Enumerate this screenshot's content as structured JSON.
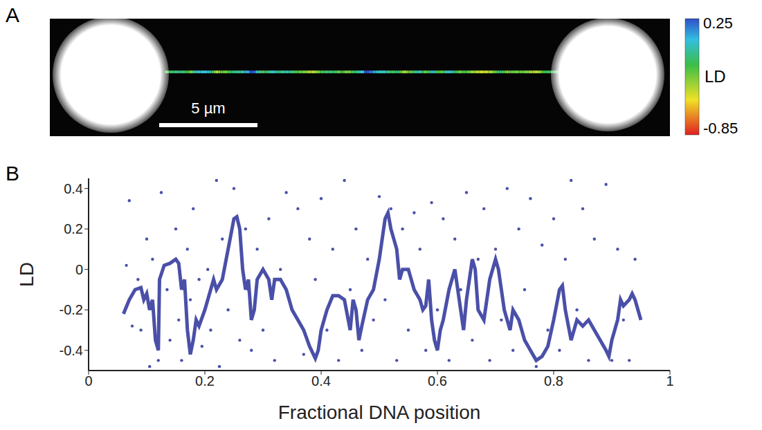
{
  "chart_data": [
    {
      "type": "image",
      "panel": "A",
      "scale_bar": "5 µm",
      "colorbar": {
        "label": "LD",
        "range": [
          -0.85,
          0.25
        ],
        "ticks": [
          -0.85,
          0.25
        ]
      }
    },
    {
      "type": "scatter",
      "panel": "B",
      "x_label": "Fractional DNA position",
      "y_label": "LD",
      "xlim": [
        0,
        1
      ],
      "xticks": [
        0,
        0.2,
        0.4,
        0.6,
        0.8,
        1
      ],
      "ylim": [
        -0.5,
        0.45
      ],
      "yticks": [
        -0.4,
        -0.2,
        0,
        0.2,
        0.4
      ],
      "series": [
        {
          "type": "scatter",
          "color": "#4a50a8",
          "marker": "circle",
          "x": [
            0.065,
            0.07,
            0.075,
            0.085,
            0.09,
            0.1,
            0.105,
            0.11,
            0.12,
            0.125,
            0.135,
            0.14,
            0.15,
            0.155,
            0.16,
            0.17,
            0.175,
            0.18,
            0.19,
            0.195,
            0.205,
            0.21,
            0.22,
            0.225,
            0.23,
            0.24,
            0.25,
            0.26,
            0.27,
            0.275,
            0.28,
            0.29,
            0.3,
            0.31,
            0.32,
            0.33,
            0.34,
            0.35,
            0.36,
            0.37,
            0.38,
            0.39,
            0.4,
            0.41,
            0.42,
            0.43,
            0.44,
            0.45,
            0.46,
            0.47,
            0.48,
            0.49,
            0.5,
            0.51,
            0.52,
            0.53,
            0.54,
            0.55,
            0.56,
            0.57,
            0.58,
            0.59,
            0.6,
            0.61,
            0.62,
            0.63,
            0.64,
            0.65,
            0.66,
            0.67,
            0.68,
            0.69,
            0.7,
            0.71,
            0.72,
            0.73,
            0.74,
            0.75,
            0.76,
            0.77,
            0.78,
            0.79,
            0.8,
            0.81,
            0.82,
            0.83,
            0.84,
            0.85,
            0.86,
            0.87,
            0.88,
            0.89,
            0.9,
            0.91,
            0.92,
            0.93,
            0.94
          ],
          "values": [
            0.02,
            0.34,
            -0.28,
            -0.05,
            -0.3,
            0.15,
            -0.48,
            0.05,
            -0.45,
            0.38,
            -0.1,
            -0.35,
            0.2,
            -0.25,
            -0.45,
            0.1,
            -0.15,
            0.3,
            -0.05,
            -0.38,
            0.0,
            -0.3,
            0.44,
            -0.48,
            0.15,
            -0.2,
            0.4,
            -0.35,
            0.2,
            -0.1,
            -0.4,
            0.1,
            -0.3,
            0.25,
            -0.45,
            0.0,
            0.38,
            -0.2,
            0.3,
            -0.42,
            0.15,
            -0.05,
            0.35,
            -0.3,
            0.1,
            -0.45,
            0.44,
            -0.1,
            0.2,
            -0.4,
            0.05,
            -0.25,
            0.36,
            -0.15,
            0.3,
            -0.45,
            0.2,
            -0.3,
            0.28,
            0.1,
            -0.4,
            0.33,
            -0.2,
            0.25,
            -0.45,
            0.15,
            -0.1,
            0.38,
            -0.35,
            0.05,
            0.3,
            -0.45,
            0.1,
            -0.25,
            0.4,
            -0.4,
            0.2,
            -0.1,
            0.35,
            -0.48,
            0.12,
            -0.3,
            0.25,
            -0.4,
            0.05,
            0.44,
            -0.2,
            0.3,
            -0.45,
            0.15,
            -0.35,
            0.42,
            -0.45,
            0.1,
            -0.25,
            -0.45,
            0.05
          ]
        },
        {
          "type": "line",
          "color": "#4a50a8",
          "line_style": "solid",
          "x": [
            0.06,
            0.07,
            0.08,
            0.09,
            0.095,
            0.1,
            0.105,
            0.11,
            0.115,
            0.12,
            0.122,
            0.13,
            0.14,
            0.15,
            0.155,
            0.16,
            0.165,
            0.17,
            0.175,
            0.18,
            0.185,
            0.19,
            0.2,
            0.21,
            0.215,
            0.22,
            0.23,
            0.24,
            0.25,
            0.255,
            0.26,
            0.265,
            0.27,
            0.275,
            0.28,
            0.285,
            0.29,
            0.3,
            0.31,
            0.315,
            0.32,
            0.33,
            0.34,
            0.35,
            0.36,
            0.37,
            0.38,
            0.39,
            0.395,
            0.4,
            0.41,
            0.42,
            0.43,
            0.44,
            0.45,
            0.455,
            0.46,
            0.465,
            0.47,
            0.48,
            0.49,
            0.5,
            0.51,
            0.515,
            0.52,
            0.53,
            0.535,
            0.54,
            0.55,
            0.56,
            0.57,
            0.575,
            0.58,
            0.585,
            0.59,
            0.595,
            0.6,
            0.605,
            0.61,
            0.62,
            0.63,
            0.64,
            0.645,
            0.65,
            0.66,
            0.665,
            0.67,
            0.68,
            0.69,
            0.7,
            0.705,
            0.71,
            0.715,
            0.72,
            0.725,
            0.73,
            0.74,
            0.75,
            0.76,
            0.77,
            0.78,
            0.79,
            0.8,
            0.81,
            0.815,
            0.82,
            0.83,
            0.835,
            0.84,
            0.85,
            0.86,
            0.87,
            0.88,
            0.89,
            0.895,
            0.9,
            0.91,
            0.915,
            0.92,
            0.93,
            0.935,
            0.94,
            0.945,
            0.95
          ],
          "values": [
            -0.22,
            -0.15,
            -0.1,
            -0.09,
            -0.15,
            -0.12,
            -0.2,
            -0.15,
            -0.35,
            -0.4,
            -0.05,
            0.02,
            0.03,
            0.05,
            0.03,
            -0.1,
            -0.05,
            -0.3,
            -0.42,
            -0.35,
            -0.25,
            -0.28,
            -0.2,
            -0.1,
            -0.05,
            -0.1,
            -0.05,
            0.1,
            0.25,
            0.26,
            0.2,
            0.0,
            -0.1,
            -0.05,
            -0.25,
            -0.2,
            -0.05,
            0.0,
            -0.05,
            -0.15,
            -0.05,
            -0.05,
            -0.1,
            -0.2,
            -0.25,
            -0.3,
            -0.38,
            -0.44,
            -0.4,
            -0.3,
            -0.2,
            -0.13,
            -0.13,
            -0.15,
            -0.3,
            -0.15,
            -0.2,
            -0.35,
            -0.28,
            -0.15,
            -0.1,
            0.05,
            0.25,
            0.28,
            0.2,
            0.1,
            -0.05,
            0.0,
            0.0,
            -0.1,
            -0.15,
            -0.2,
            -0.18,
            -0.05,
            -0.25,
            -0.35,
            -0.4,
            -0.3,
            -0.25,
            -0.1,
            0.0,
            -0.2,
            -0.3,
            -0.15,
            0.05,
            0.0,
            -0.2,
            -0.25,
            -0.05,
            0.05,
            0.0,
            -0.1,
            -0.2,
            -0.25,
            -0.3,
            -0.2,
            -0.25,
            -0.35,
            -0.4,
            -0.45,
            -0.43,
            -0.38,
            -0.25,
            -0.1,
            -0.08,
            -0.2,
            -0.35,
            -0.3,
            -0.25,
            -0.28,
            -0.25,
            -0.3,
            -0.35,
            -0.4,
            -0.43,
            -0.35,
            -0.25,
            -0.15,
            -0.18,
            -0.15,
            -0.12,
            -0.15,
            -0.2,
            -0.25
          ]
        }
      ]
    }
  ]
}
